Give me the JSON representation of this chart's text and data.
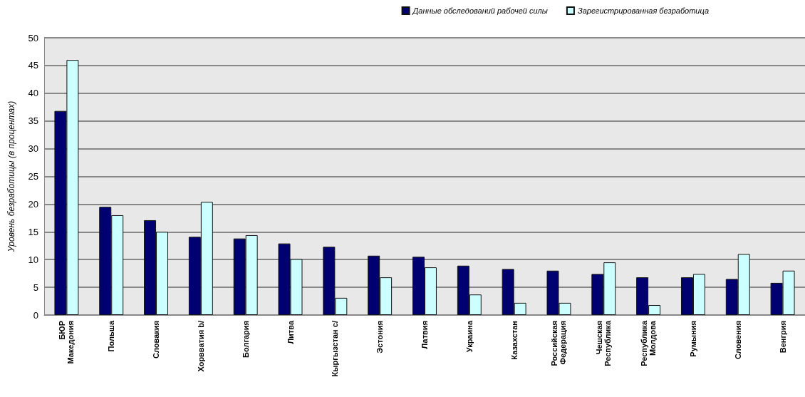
{
  "chart_data": {
    "type": "bar",
    "ylabel": "Уровень безработицы (в процентах)",
    "categories": [
      "БЮР\nМакедония",
      "Польша",
      "Словакия",
      "Хорвватия b/",
      "Болгария",
      "Литва",
      "Кыргызстан c/",
      "Эстония",
      "Латвия",
      "Украина",
      "Казахстан",
      "Российская\nФедерация",
      "Чешская\nРеспублика",
      "Республика\nМолдова",
      "Румыния",
      "Словения",
      "Венгрия"
    ],
    "series": [
      {
        "name": "Данные обследований рабочей силы",
        "color": "#000070",
        "values": [
          36.8,
          19.5,
          17.1,
          14.1,
          13.8,
          12.9,
          12.3,
          10.7,
          10.5,
          8.9,
          8.3,
          8.0,
          7.4,
          6.8,
          6.8,
          6.5,
          5.8
        ]
      },
      {
        "name": "Зарегистрированная безработица",
        "color": "#ccffff",
        "values": [
          46.0,
          18.0,
          15.0,
          20.4,
          14.4,
          10.1,
          3.1,
          6.8,
          8.6,
          3.7,
          2.2,
          2.2,
          9.5,
          1.8,
          7.4,
          11.0,
          8.0
        ]
      }
    ],
    "ylim": [
      0,
      50
    ],
    "yticks": [
      0,
      5,
      10,
      15,
      20,
      25,
      30,
      35,
      40,
      45,
      50
    ],
    "grid": "y",
    "legend": "top right"
  }
}
